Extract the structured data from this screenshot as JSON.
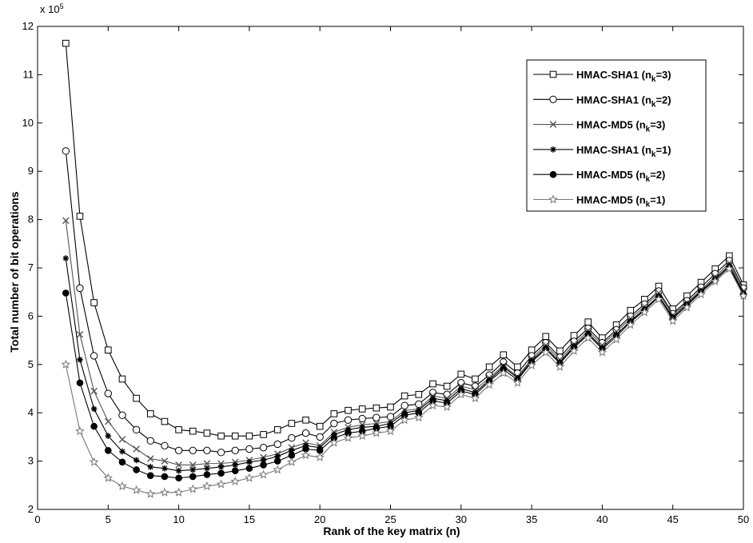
{
  "chart_data": {
    "type": "line",
    "title": "",
    "xlabel": "Rank of the key matrix (n)",
    "ylabel": "Total number of bit operations",
    "y_multiplier": "x 10",
    "y_multiplier_exponent": "5",
    "xlim": [
      0,
      50
    ],
    "ylim": [
      2,
      12
    ],
    "xticks": [
      "0",
      "5",
      "10",
      "15",
      "20",
      "25",
      "30",
      "35",
      "40",
      "45",
      "50"
    ],
    "yticks": [
      "2",
      "3",
      "4",
      "5",
      "6",
      "7",
      "8",
      "9",
      "10",
      "11",
      "12"
    ],
    "grid": false,
    "legend_position": "top-right",
    "x": [
      2,
      3,
      4,
      5,
      6,
      7,
      8,
      9,
      10,
      11,
      12,
      13,
      14,
      15,
      16,
      17,
      18,
      19,
      20,
      21,
      22,
      23,
      24,
      25,
      26,
      27,
      28,
      29,
      30,
      31,
      32,
      33,
      34,
      35,
      36,
      37,
      38,
      39,
      40,
      41,
      42,
      43,
      44,
      45,
      46,
      47,
      48,
      49,
      50
    ],
    "series": [
      {
        "name": "HMAC-SHA1 (n",
        "name_sub": "k",
        "name_tail": "=3)",
        "marker": "square",
        "color": "#000000",
        "values": [
          11.65,
          8.07,
          6.28,
          5.3,
          4.7,
          4.3,
          3.98,
          3.82,
          3.65,
          3.62,
          3.58,
          3.52,
          3.52,
          3.52,
          3.55,
          3.65,
          3.78,
          3.85,
          3.72,
          3.98,
          4.05,
          4.08,
          4.1,
          4.12,
          4.35,
          4.38,
          4.6,
          4.55,
          4.8,
          4.7,
          4.95,
          5.2,
          4.95,
          5.3,
          5.58,
          5.28,
          5.6,
          5.88,
          5.55,
          5.82,
          6.12,
          6.35,
          6.62,
          6.15,
          6.42,
          6.7,
          6.98,
          7.25,
          6.65
        ]
      },
      {
        "name": "HMAC-SHA1 (n",
        "name_sub": "k",
        "name_tail": "=2)",
        "marker": "circle",
        "color": "#000000",
        "values": [
          9.42,
          6.58,
          5.18,
          4.4,
          3.95,
          3.65,
          3.42,
          3.32,
          3.22,
          3.22,
          3.22,
          3.18,
          3.22,
          3.25,
          3.28,
          3.35,
          3.48,
          3.58,
          3.5,
          3.78,
          3.85,
          3.88,
          3.9,
          3.92,
          4.15,
          4.18,
          4.42,
          4.38,
          4.62,
          4.55,
          4.78,
          5.05,
          4.82,
          5.18,
          5.45,
          5.15,
          5.48,
          5.75,
          5.45,
          5.72,
          6.0,
          6.25,
          6.52,
          6.05,
          6.32,
          6.6,
          6.88,
          7.15,
          6.58
        ]
      },
      {
        "name": "HMAC-MD5   (n",
        "name_sub": "k",
        "name_tail": "=3)",
        "marker": "x",
        "color": "#555555",
        "values": [
          7.98,
          5.62,
          4.45,
          3.82,
          3.45,
          3.25,
          3.05,
          3.0,
          2.92,
          2.92,
          2.95,
          2.95,
          2.98,
          3.02,
          3.08,
          3.15,
          3.28,
          3.38,
          3.32,
          3.6,
          3.7,
          3.75,
          3.78,
          3.82,
          4.05,
          4.08,
          4.35,
          4.3,
          4.55,
          4.48,
          4.72,
          4.98,
          4.75,
          5.12,
          5.4,
          5.1,
          5.42,
          5.7,
          5.4,
          5.68,
          5.95,
          6.2,
          6.48,
          6.02,
          6.28,
          6.55,
          6.82,
          7.1,
          6.52
        ]
      },
      {
        "name": "HMAC-SHA1 (n",
        "name_sub": "k",
        "name_tail": "=1)",
        "marker": "star-asterisk",
        "color": "#000000",
        "values": [
          7.2,
          5.1,
          4.08,
          3.52,
          3.2,
          3.02,
          2.88,
          2.85,
          2.8,
          2.82,
          2.85,
          2.88,
          2.92,
          2.98,
          3.02,
          3.1,
          3.22,
          3.32,
          3.28,
          3.55,
          3.65,
          3.7,
          3.72,
          3.78,
          4.0,
          4.05,
          4.3,
          4.25,
          4.5,
          4.42,
          4.68,
          4.95,
          4.72,
          5.08,
          5.35,
          5.05,
          5.38,
          5.65,
          5.35,
          5.62,
          5.9,
          6.15,
          6.42,
          5.98,
          6.25,
          6.52,
          6.78,
          7.05,
          6.48
        ]
      },
      {
        "name": "HMAC-MD5   (n",
        "name_sub": "k",
        "name_tail": "=2)",
        "marker": "filled-circle",
        "color": "#000000",
        "values": [
          6.48,
          4.62,
          3.72,
          3.22,
          2.98,
          2.82,
          2.7,
          2.68,
          2.65,
          2.68,
          2.72,
          2.75,
          2.8,
          2.85,
          2.92,
          3.0,
          3.12,
          3.25,
          3.22,
          3.48,
          3.58,
          3.62,
          3.68,
          3.72,
          3.95,
          4.0,
          4.25,
          4.2,
          4.45,
          4.38,
          4.65,
          4.9,
          4.68,
          5.05,
          5.32,
          5.02,
          5.35,
          5.62,
          5.32,
          5.58,
          5.88,
          6.12,
          6.4,
          5.95,
          6.22,
          6.5,
          6.75,
          7.02,
          6.45
        ]
      },
      {
        "name": "HMAC-MD5   (n",
        "name_sub": "k",
        "name_tail": "=1)",
        "marker": "star",
        "color": "#777777",
        "values": [
          5.0,
          3.62,
          2.98,
          2.65,
          2.48,
          2.4,
          2.32,
          2.35,
          2.35,
          2.42,
          2.48,
          2.52,
          2.58,
          2.65,
          2.72,
          2.82,
          2.98,
          3.12,
          3.08,
          3.38,
          3.48,
          3.52,
          3.58,
          3.62,
          3.85,
          3.9,
          4.15,
          4.12,
          4.38,
          4.3,
          4.58,
          4.82,
          4.62,
          4.98,
          5.25,
          4.95,
          5.28,
          5.55,
          5.25,
          5.52,
          5.82,
          6.08,
          6.35,
          5.9,
          6.18,
          6.45,
          6.72,
          6.98,
          6.42
        ]
      }
    ]
  }
}
